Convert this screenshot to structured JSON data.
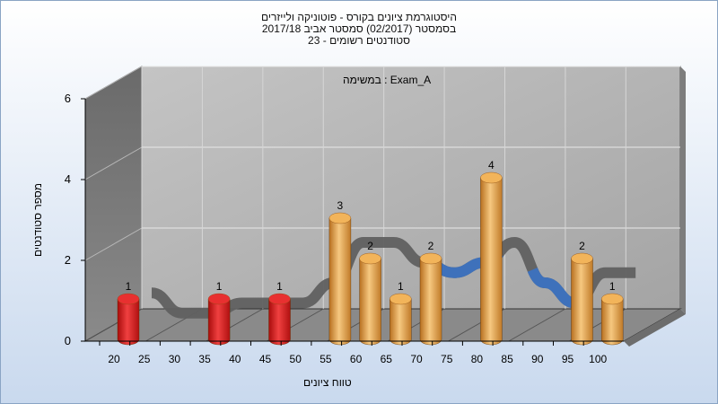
{
  "chart_data": {
    "type": "bar",
    "title_lines": [
      "היסטוגרמת ציונים בקורס - פוטוניקה ולייזרים",
      "בסמסטר  (02/2017)  סמסטר אביב 2017/18",
      "סטודנטים רשומים - 23"
    ],
    "annotation": "במשימה : Exam_A",
    "xlabel": "טווח ציונים",
    "ylabel": "מספר סטודנטים",
    "x_ticks": [
      20,
      25,
      30,
      35,
      40,
      45,
      50,
      55,
      60,
      65,
      70,
      75,
      80,
      85,
      90,
      95,
      100
    ],
    "y_ticks": [
      0,
      2,
      4,
      6
    ],
    "ylim": [
      0,
      6
    ],
    "categories": [
      20,
      25,
      30,
      35,
      40,
      45,
      50,
      55,
      60,
      65,
      70,
      75,
      80,
      85,
      90,
      95,
      100
    ],
    "values": [
      1,
      0,
      0,
      1,
      0,
      1,
      0,
      3,
      2,
      1,
      2,
      0,
      4,
      0,
      0,
      2,
      1
    ],
    "failing_threshold": 55,
    "colors": {
      "fail": "#d42020",
      "pass": "#e8a440",
      "trend_dark": "#606060",
      "trend_blue": "#3a72c4",
      "wall": "#a9a9a9",
      "floor": "#808080"
    }
  }
}
